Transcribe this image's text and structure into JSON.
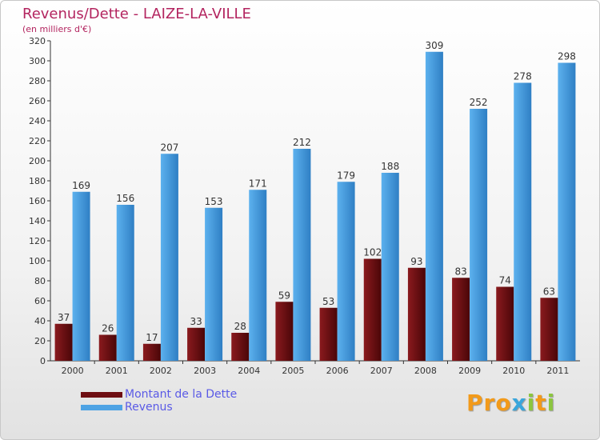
{
  "header": {
    "title": "Revenus/Dette - LAIZE-LA-VILLE",
    "subtitle": "(en milliers d'€)"
  },
  "colors": {
    "title": "#b3245f",
    "dette": "#6e0e12",
    "revenus": "#4ea3e4",
    "legend_text": "#5a5ae6"
  },
  "legend": {
    "items": [
      {
        "label": "Montant de la Dette",
        "color": "#6e0e12"
      },
      {
        "label": "Revenus",
        "color": "#4ea3e4"
      }
    ]
  },
  "logo": {
    "letters": [
      "P",
      "r",
      "o",
      "x",
      "i",
      "t",
      "i"
    ],
    "letter_colors": [
      "#f29a1a",
      "#f29a1a",
      "#f29a1a",
      "#39a6dc",
      "#8cc63f",
      "#f29a1a",
      "#8cc63f"
    ]
  },
  "chart_data": {
    "type": "bar",
    "title": "Revenus/Dette - LAIZE-LA-VILLE",
    "subtitle": "(en milliers d'€)",
    "categories": [
      "2000",
      "2001",
      "2002",
      "2003",
      "2004",
      "2005",
      "2006",
      "2007",
      "2008",
      "2009",
      "2010",
      "2011"
    ],
    "series": [
      {
        "name": "Montant de la Dette",
        "values": [
          37,
          26,
          17,
          33,
          28,
          59,
          53,
          102,
          93,
          83,
          74,
          63
        ]
      },
      {
        "name": "Revenus",
        "values": [
          169,
          156,
          207,
          153,
          171,
          212,
          179,
          188,
          309,
          252,
          278,
          298
        ]
      }
    ],
    "ylim": [
      0,
      320
    ],
    "ytick_step": 20,
    "grid": false,
    "legend_position": "bottom-left",
    "data_labels": true
  }
}
